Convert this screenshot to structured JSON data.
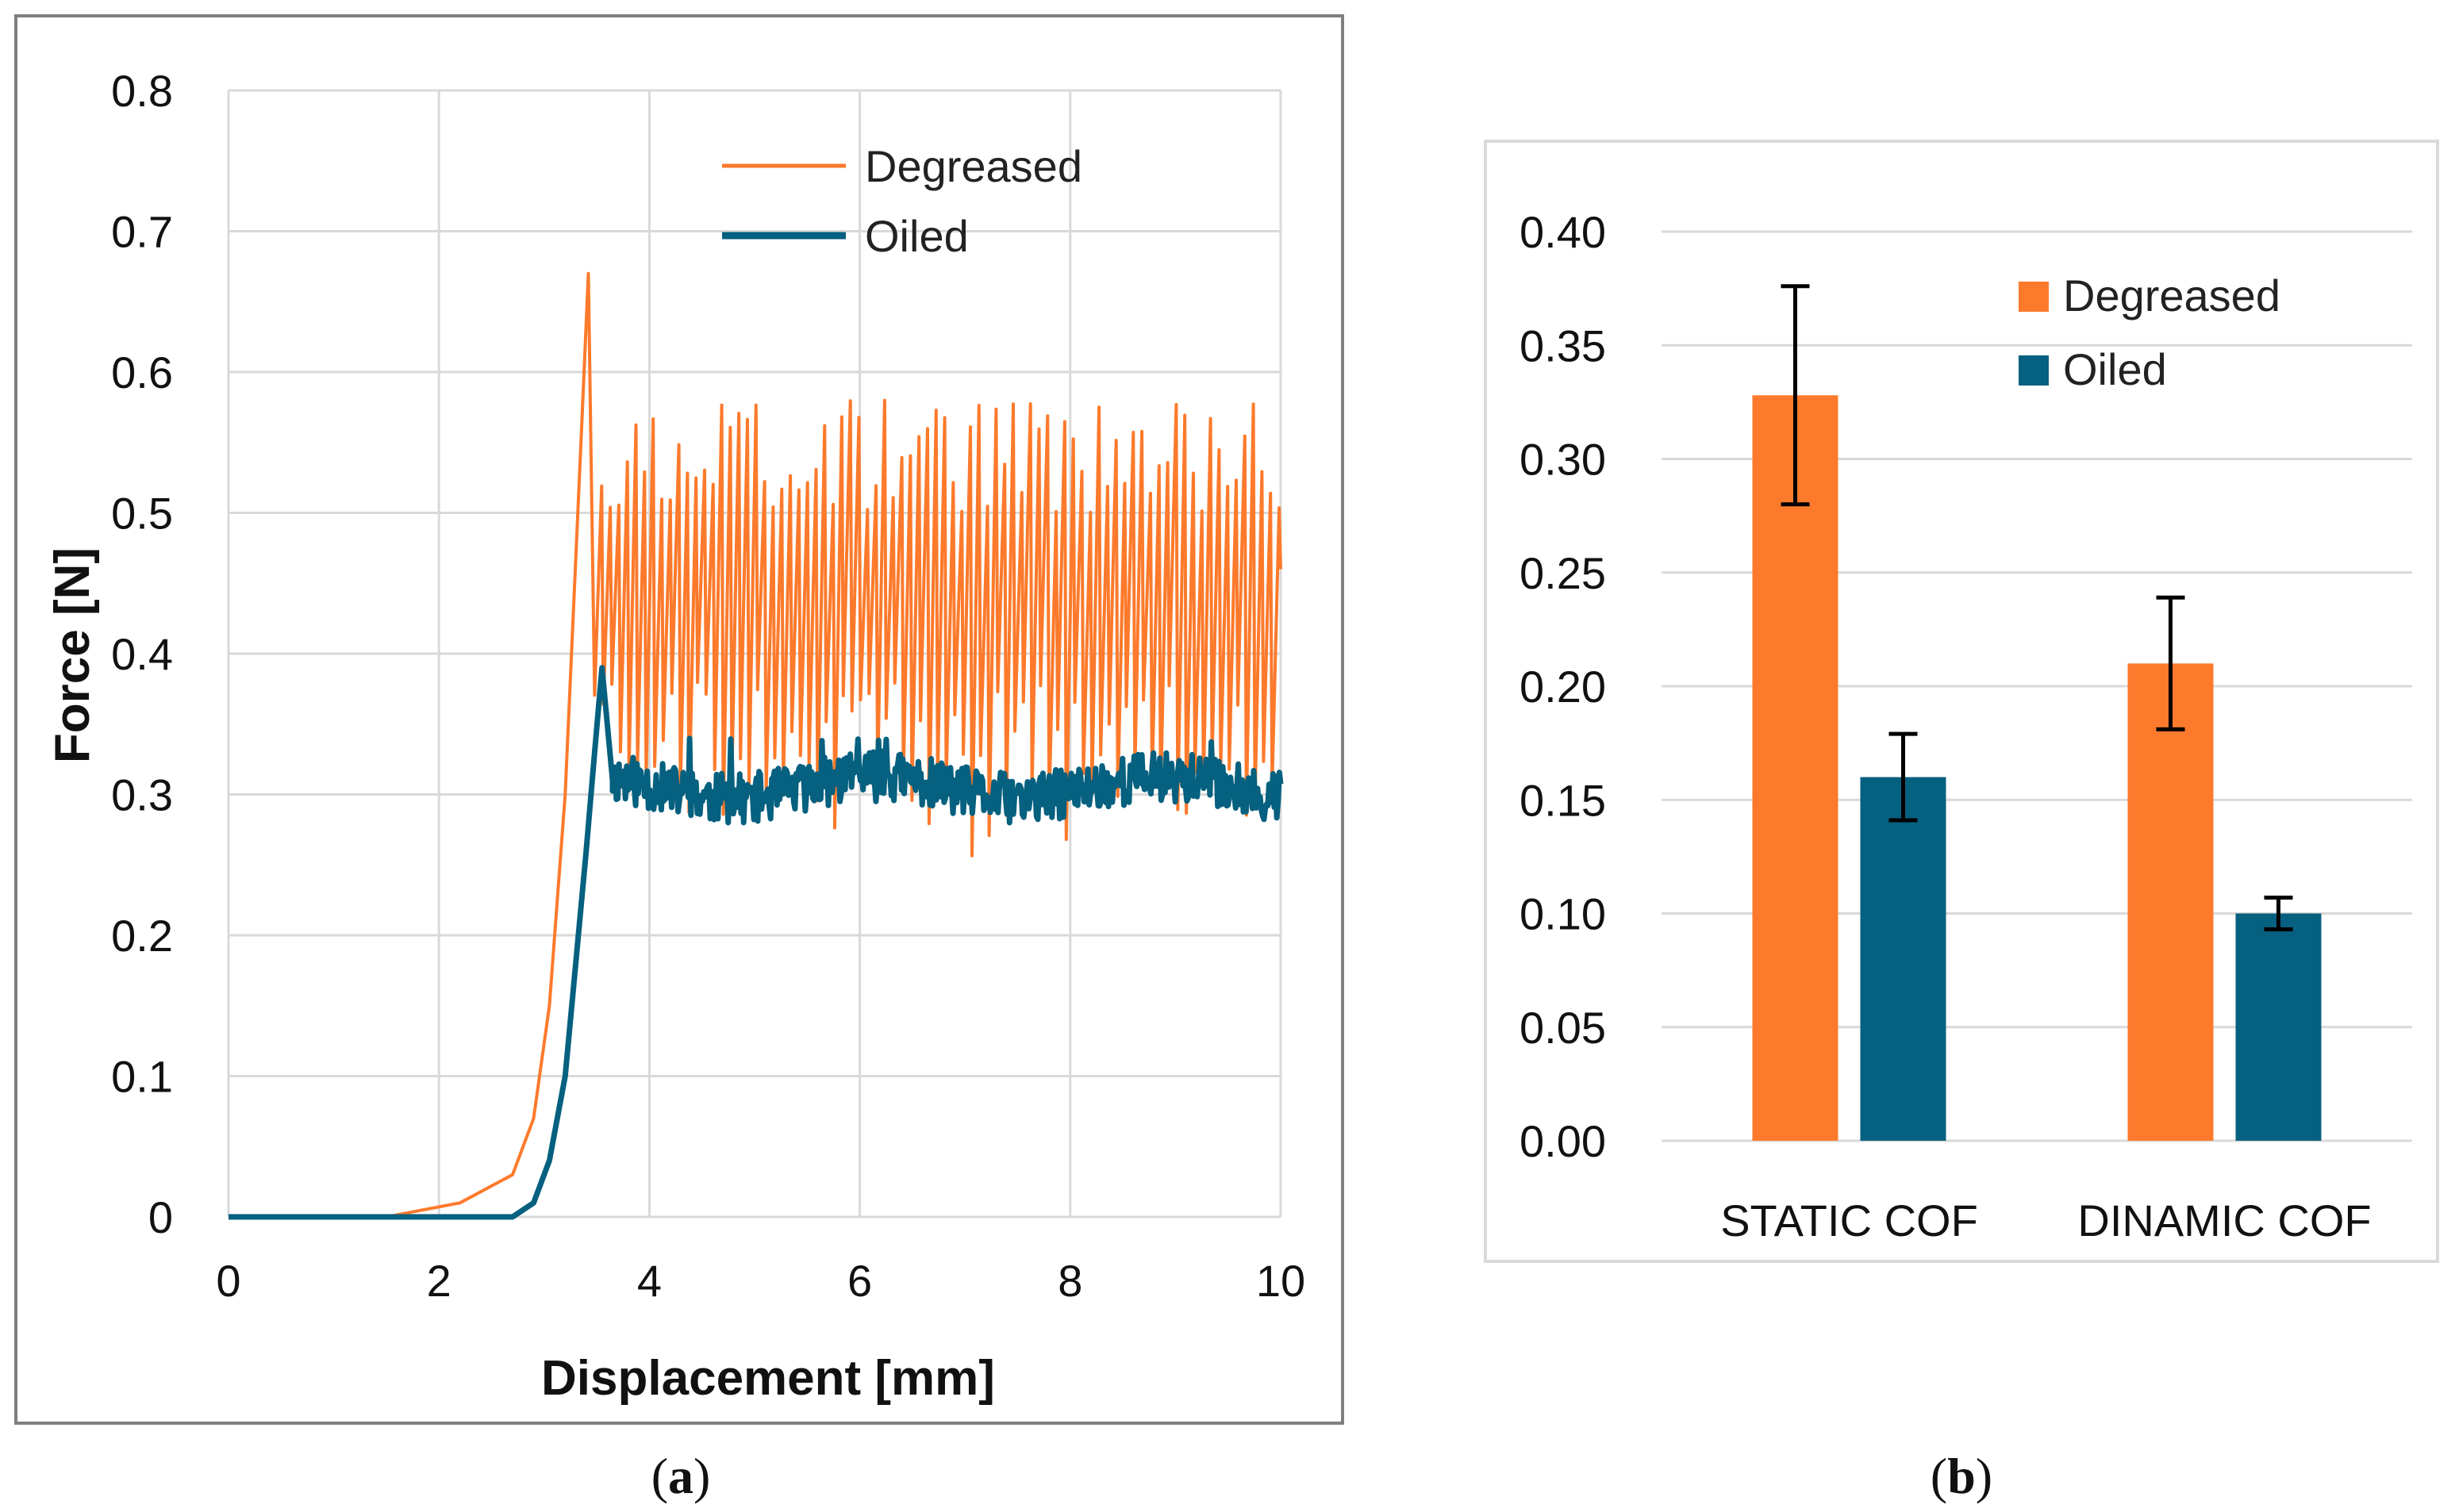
{
  "colors": {
    "degreased": "#FD7A2C",
    "oiled": "#06607F",
    "grid": "#D9D9D9",
    "frame": "#7F7F7F",
    "errorbar": "#000000"
  },
  "captions": {
    "a_open": "(",
    "a_letter": "a",
    "a_close": ")",
    "b_open": "(",
    "b_letter": "b",
    "b_close": ")"
  },
  "chart_data": [
    {
      "id": "a",
      "type": "line",
      "title": "",
      "xlabel": "Displacement [mm]",
      "ylabel": "Force [N]",
      "xlim": [
        0,
        10
      ],
      "ylim": [
        0,
        0.8
      ],
      "xticks": [
        0,
        2,
        4,
        6,
        8,
        10
      ],
      "xtick_labels": [
        "0",
        "2",
        "4",
        "6",
        "8",
        "10"
      ],
      "yticks": [
        0,
        0.1,
        0.2,
        0.3,
        0.4,
        0.5,
        0.6,
        0.7,
        0.8
      ],
      "ytick_labels": [
        "0",
        "0.1",
        "0.2",
        "0.3",
        "0.4",
        "0.5",
        "0.6",
        "0.7",
        "0.8"
      ],
      "grid": true,
      "legend_position": "top-right",
      "series": [
        {
          "name": "Degreased",
          "color": "#FD7A2C",
          "ramp": {
            "x": [
              0,
              1.5,
              2.2,
              2.7,
              2.9,
              3.05,
              3.2,
              3.35,
              3.42
            ],
            "y": [
              0,
              0,
              0.01,
              0.03,
              0.07,
              0.15,
              0.3,
              0.55,
              0.67
            ]
          },
          "oscillation": {
            "x_start": 3.48,
            "x_end": 10.0,
            "cycles": 80,
            "seed": 7,
            "peak_range": [
              0.5,
              0.58
            ],
            "valley_range": [
              0.27,
              0.38
            ],
            "min": 0.25,
            "max": 0.58
          }
        },
        {
          "name": "Oiled",
          "color": "#06607F",
          "ramp": {
            "x": [
              0,
              2.7,
              2.9,
              3.05,
              3.2,
              3.3,
              3.4,
              3.48,
              3.55,
              3.65
            ],
            "y": [
              0,
              0,
              0.01,
              0.04,
              0.1,
              0.18,
              0.26,
              0.33,
              0.39,
              0.31
            ]
          },
          "noise": {
            "x_start": 3.65,
            "x_end": 10.0,
            "points": 520,
            "seed": 11,
            "mean": 0.305,
            "amplitude": 0.018,
            "min": 0.28,
            "max": 0.34
          }
        }
      ]
    },
    {
      "id": "b",
      "type": "bar",
      "title": "",
      "xlabel": "",
      "ylabel": "",
      "categories": [
        "STATIC COF",
        "DINAMIC COF"
      ],
      "ylim": [
        0,
        0.4
      ],
      "yticks": [
        0,
        0.05,
        0.1,
        0.15,
        0.2,
        0.25,
        0.3,
        0.35,
        0.4
      ],
      "ytick_labels": [
        "0.00",
        "0.05",
        "0.10",
        "0.15",
        "0.20",
        "0.25",
        "0.30",
        "0.35",
        "0.40"
      ],
      "grid": true,
      "legend_position": "top-right",
      "series": [
        {
          "name": "Degreased",
          "color": "#FD7A2C",
          "values": [
            0.328,
            0.21
          ],
          "errors": [
            0.048,
            0.029
          ]
        },
        {
          "name": "Oiled",
          "color": "#06607F",
          "values": [
            0.16,
            0.1
          ],
          "errors": [
            0.019,
            0.007
          ]
        }
      ]
    }
  ]
}
